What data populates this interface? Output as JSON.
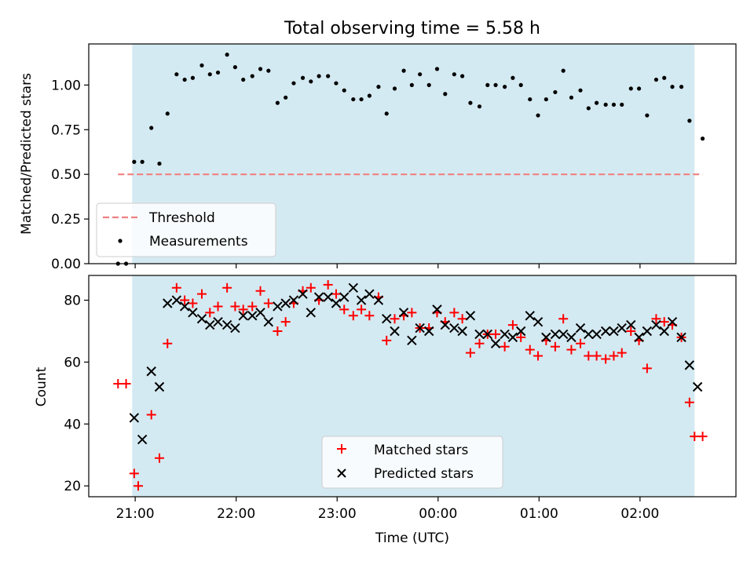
{
  "colors": {
    "shade": "#add8e6",
    "threshold": "#f08080",
    "matched": "#ff0000",
    "predicted": "#000000",
    "measurement": "#000000"
  },
  "chart_data": [
    {
      "type": "scatter",
      "title": "Total observing time = 5.58 h",
      "xlabel": "",
      "ylabel": "Matched/Predicted stars",
      "ylim": [
        0,
        1.23
      ],
      "yticks": [
        0.0,
        0.25,
        0.5,
        0.75,
        1.0
      ],
      "ytick_labels": [
        "0.00",
        "0.25",
        "0.50",
        "0.75",
        "1.00"
      ],
      "xticks": [
        21,
        22,
        23,
        24,
        25,
        26
      ],
      "xlim": [
        20.54,
        26.95
      ],
      "shaded_span": [
        20.97,
        26.54
      ],
      "grid": false,
      "legend": "lower-left",
      "threshold": {
        "name": "Threshold",
        "y": 0.5,
        "x": [
          20.83,
          26.62
        ]
      },
      "series": [
        {
          "name": "Measurements",
          "x": [
            20.83,
            20.91,
            20.99,
            21.07,
            21.16,
            21.24,
            21.32,
            21.41,
            21.49,
            21.57,
            21.66,
            21.74,
            21.82,
            21.91,
            21.99,
            22.07,
            22.16,
            22.24,
            22.32,
            22.41,
            22.49,
            22.57,
            22.66,
            22.74,
            22.82,
            22.91,
            22.99,
            23.07,
            23.16,
            23.24,
            23.32,
            23.41,
            23.49,
            23.57,
            23.66,
            23.74,
            23.82,
            23.91,
            23.99,
            24.07,
            24.16,
            24.24,
            24.32,
            24.41,
            24.49,
            24.57,
            24.66,
            24.74,
            24.82,
            24.91,
            24.99,
            25.07,
            25.16,
            25.24,
            25.32,
            25.41,
            25.49,
            25.57,
            25.66,
            25.74,
            25.82,
            25.91,
            25.99,
            26.07,
            26.16,
            26.24,
            26.32,
            26.41,
            26.49,
            26.62
          ],
          "y": [
            0.0,
            0.0,
            0.57,
            0.57,
            0.76,
            0.56,
            0.84,
            1.06,
            1.03,
            1.04,
            1.11,
            1.06,
            1.07,
            1.17,
            1.1,
            1.03,
            1.05,
            1.09,
            1.08,
            0.9,
            0.93,
            1.01,
            1.04,
            1.02,
            1.05,
            1.05,
            1.01,
            0.97,
            0.92,
            0.92,
            0.94,
            0.99,
            0.84,
            0.98,
            1.08,
            1.0,
            1.06,
            1.0,
            1.09,
            0.95,
            1.06,
            1.05,
            0.9,
            0.88,
            1.0,
            1.0,
            0.99,
            1.04,
            1.0,
            0.92,
            0.83,
            0.92,
            0.96,
            1.08,
            0.93,
            0.97,
            0.87,
            0.9,
            0.89,
            0.89,
            0.89,
            0.98,
            0.98,
            0.83,
            1.03,
            1.04,
            0.99,
            0.99,
            0.8,
            0.7
          ]
        }
      ]
    },
    {
      "type": "scatter",
      "title": "",
      "xlabel": "Time (UTC)",
      "ylabel": "Count",
      "ylim": [
        16.5,
        88
      ],
      "yticks": [
        20,
        40,
        60,
        80
      ],
      "ytick_labels": [
        "20",
        "40",
        "60",
        "80"
      ],
      "xticks": [
        21,
        22,
        23,
        24,
        25,
        26
      ],
      "xtick_labels": [
        "21:00",
        "22:00",
        "23:00",
        "00:00",
        "01:00",
        "02:00"
      ],
      "xlim": [
        20.54,
        26.95
      ],
      "shaded_span": [
        20.97,
        26.54
      ],
      "grid": false,
      "legend": "lower-center",
      "series": [
        {
          "name": "Matched stars",
          "marker": "plus",
          "x": [
            20.83,
            20.91,
            20.99,
            21.03,
            21.16,
            21.24,
            21.32,
            21.41,
            21.49,
            21.57,
            21.66,
            21.74,
            21.82,
            21.91,
            21.99,
            22.07,
            22.16,
            22.24,
            22.32,
            22.41,
            22.49,
            22.57,
            22.66,
            22.74,
            22.82,
            22.91,
            22.99,
            23.07,
            23.16,
            23.24,
            23.32,
            23.41,
            23.49,
            23.57,
            23.66,
            23.74,
            23.82,
            23.91,
            23.99,
            24.07,
            24.16,
            24.24,
            24.32,
            24.41,
            24.49,
            24.57,
            24.66,
            24.74,
            24.82,
            24.91,
            24.99,
            25.07,
            25.16,
            25.24,
            25.32,
            25.41,
            25.49,
            25.57,
            25.66,
            25.74,
            25.82,
            25.91,
            25.99,
            26.07,
            26.16,
            26.24,
            26.32,
            26.41,
            26.49,
            26.54,
            26.62
          ],
          "y": [
            53,
            53,
            24,
            20,
            43,
            29,
            66,
            84,
            80,
            79,
            82,
            76,
            78,
            84,
            78,
            77,
            78,
            83,
            79,
            70,
            73,
            79,
            83,
            84,
            80,
            85,
            82,
            77,
            75,
            77,
            75,
            81,
            67,
            74,
            75,
            76,
            71,
            71,
            76,
            73,
            76,
            74,
            63,
            66,
            69,
            69,
            65,
            72,
            68,
            64,
            62,
            67,
            65,
            74,
            64,
            66,
            62,
            62,
            61,
            62,
            63,
            70,
            67,
            58,
            74,
            73,
            72,
            68,
            47,
            36,
            36
          ]
        },
        {
          "name": "Predicted stars",
          "marker": "x",
          "x": [
            20.99,
            21.07,
            21.16,
            21.24,
            21.32,
            21.41,
            21.49,
            21.57,
            21.66,
            21.74,
            21.82,
            21.91,
            21.99,
            22.07,
            22.16,
            22.24,
            22.32,
            22.41,
            22.49,
            22.57,
            22.66,
            22.74,
            22.82,
            22.91,
            22.99,
            23.07,
            23.16,
            23.24,
            23.32,
            23.41,
            23.49,
            23.57,
            23.66,
            23.74,
            23.82,
            23.91,
            23.99,
            24.07,
            24.16,
            24.24,
            24.32,
            24.41,
            24.49,
            24.57,
            24.66,
            24.74,
            24.82,
            24.91,
            24.99,
            25.07,
            25.16,
            25.24,
            25.32,
            25.41,
            25.49,
            25.57,
            25.66,
            25.74,
            25.82,
            25.91,
            25.99,
            26.07,
            26.16,
            26.24,
            26.32,
            26.41,
            26.49,
            26.57
          ],
          "y": [
            42,
            35,
            57,
            52,
            79,
            80,
            78,
            76,
            74,
            72,
            73,
            72,
            71,
            75,
            75,
            76,
            73,
            78,
            79,
            80,
            82,
            76,
            81,
            81,
            79,
            81,
            84,
            80,
            82,
            80,
            74,
            70,
            76,
            67,
            71,
            70,
            77,
            72,
            71,
            70,
            75,
            69,
            69,
            66,
            69,
            68,
            70,
            75,
            73,
            68,
            69,
            69,
            68,
            71,
            69,
            69,
            70,
            70,
            71,
            72,
            68,
            70,
            72,
            70,
            73,
            68,
            59,
            52
          ]
        }
      ]
    }
  ]
}
